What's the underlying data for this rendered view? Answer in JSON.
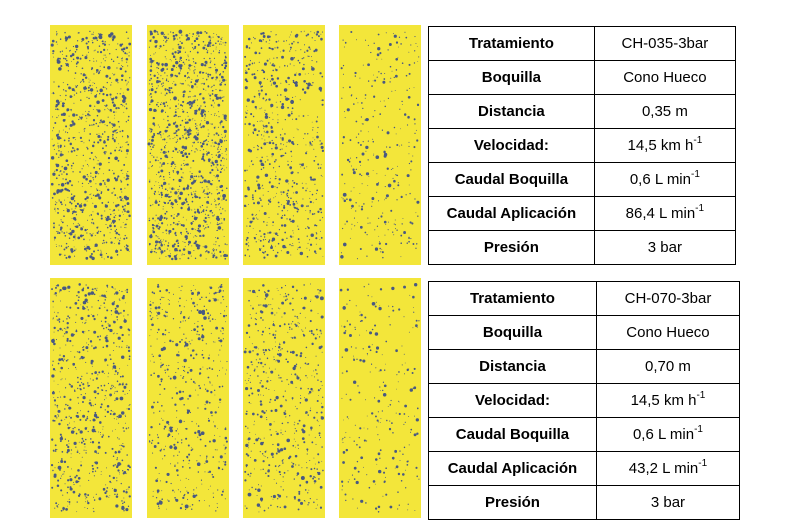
{
  "tables": [
    {
      "rows": [
        [
          "Tratamiento",
          "CH-035-3bar"
        ],
        [
          "Boquilla",
          "Cono Hueco"
        ],
        [
          "Distancia",
          "0,35 m"
        ],
        [
          "Velocidad:",
          {
            "text": "14,5 km h",
            "sup": "-1"
          }
        ],
        [
          "Caudal Boquilla",
          {
            "text": "0,6 L min",
            "sup": "-1"
          }
        ],
        [
          "Caudal Aplicación",
          {
            "text": "86,4 L min",
            "sup": "-1"
          }
        ],
        [
          "Presión",
          "3 bar"
        ]
      ]
    },
    {
      "rows": [
        [
          "Tratamiento",
          "CH-070-3bar"
        ],
        [
          "Boquilla",
          "Cono Hueco"
        ],
        [
          "Distancia",
          "0,70 m"
        ],
        [
          "Velocidad:",
          {
            "text": "14,5 km h",
            "sup": "-1"
          }
        ],
        [
          "Caudal Boquilla",
          {
            "text": "0,6 L min",
            "sup": "-1"
          }
        ],
        [
          "Caudal Aplicación",
          {
            "text": "43,2 L min",
            "sup": "-1"
          }
        ],
        [
          "Presión",
          "3 bar"
        ]
      ]
    }
  ]
}
